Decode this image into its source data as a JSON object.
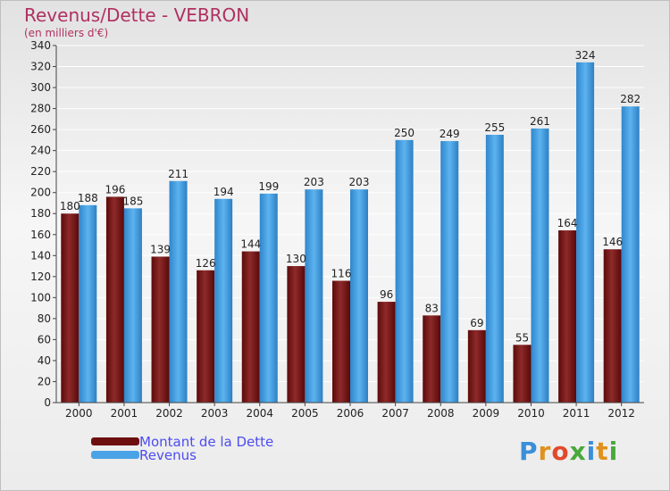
{
  "title": "Revenus/Dette - VEBRON",
  "subtitle": "(en milliers d'€)",
  "brand": "Proxiti",
  "legend": {
    "items": [
      {
        "label": "Montant de la Dette",
        "color": "#6e0f0f"
      },
      {
        "label": "Revenus",
        "color": "#4aa3e6"
      }
    ]
  },
  "chart_data": {
    "type": "bar",
    "title": "Revenus/Dette - VEBRON",
    "subtitle": "(en milliers d'€)",
    "xlabel": "",
    "ylabel": "",
    "categories": [
      "2000",
      "2001",
      "2002",
      "2003",
      "2004",
      "2005",
      "2006",
      "2007",
      "2008",
      "2009",
      "2010",
      "2011",
      "2012"
    ],
    "series": [
      {
        "name": "Montant de la Dette",
        "color": "#7a1a1a",
        "values": [
          180,
          196,
          139,
          126,
          144,
          130,
          116,
          96,
          83,
          69,
          55,
          164,
          146
        ]
      },
      {
        "name": "Revenus",
        "color": "#3d97db",
        "values": [
          188,
          185,
          211,
          194,
          199,
          203,
          203,
          250,
          249,
          255,
          261,
          324,
          282
        ]
      }
    ],
    "ylim": [
      0,
      340
    ],
    "yticks": [
      0,
      20,
      40,
      60,
      80,
      100,
      120,
      140,
      160,
      180,
      200,
      220,
      240,
      260,
      280,
      300,
      320,
      340
    ],
    "grid": true,
    "legend_position": "bottom-left"
  }
}
